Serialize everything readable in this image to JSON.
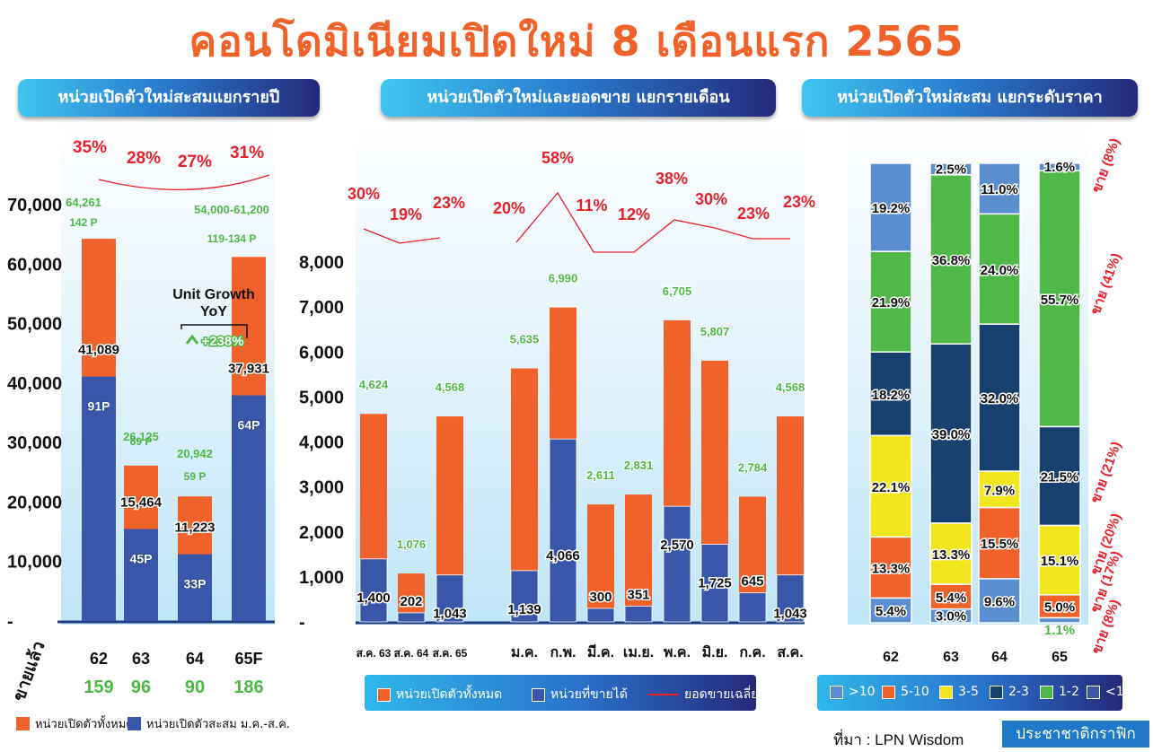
{
  "title": "คอนโดมิเนียมเปิดใหม่ 8 เดือนแรก 2565",
  "panels": {
    "left": "หน่วยเปิดตัวใหม่สะสมแยกรายปี",
    "middle": "หน่วยเปิดตัวใหม่และยอดขาย แยกรายเดือน",
    "right": "หน่วยเปิดตัวใหม่สะสม แยกระดับราคา"
  },
  "colors": {
    "orange": "#f0622a",
    "blue": "#3a56a8",
    "green": "#4fb848",
    "darkblue": "#17406e",
    "yellow": "#f2e61c",
    "lightblue": "#5b8ed0",
    "red": "#e8202a"
  },
  "chart_data": [
    {
      "type": "bar",
      "categories": [
        "62",
        "63",
        "64",
        "65F"
      ],
      "series": [
        {
          "name": "หน่วยเปิดตัวทั้งหมด",
          "values": [
            64261,
            26125,
            20942,
            61200
          ]
        },
        {
          "name": "หน่วยเปิดตัวสะสม ม.ค.-ส.ค.",
          "values": [
            41089,
            15464,
            11223,
            37931
          ]
        }
      ],
      "top_labels": [
        "64,261",
        "26,125",
        "20,942",
        "54,000-61,200"
      ],
      "project_labels": [
        "142 P",
        "69 P",
        "59 P",
        "119-134 P"
      ],
      "inner_values": [
        "41,089",
        "15,464",
        "11,223",
        "37,931"
      ],
      "inner_projects": [
        "91P",
        "45P",
        "33P",
        "64P"
      ],
      "sold_pct": [
        "35%",
        "28%",
        "27%",
        "31%"
      ],
      "sold_pct_values": [
        35,
        28,
        27,
        31
      ],
      "sold_row_label": "ขายแล้ว",
      "sold_row_values": [
        "159",
        "96",
        "90",
        "186"
      ],
      "yticks": [
        "-",
        "10,000",
        "20,000",
        "30,000",
        "40,000",
        "50,000",
        "60,000",
        "70,000"
      ],
      "ylim": [
        0,
        70000
      ],
      "annotation": {
        "line1": "Unit Growth",
        "line2": "YoY",
        "value": "+238%"
      },
      "legend": [
        "หน่วยเปิดตัวทั้งหมด",
        "หน่วยเปิดตัวสะสม ม.ค.-ส.ค."
      ]
    },
    {
      "type": "bar",
      "categories": [
        "ส.ค. 63",
        "ส.ค. 64",
        "ส.ค. 65",
        "ม.ค.",
        "ก.พ.",
        "มี.ค.",
        "เม.ย.",
        "พ.ค.",
        "มิ.ย.",
        "ก.ค.",
        "ส.ค."
      ],
      "series": [
        {
          "name": "หน่วยเปิดตัวทั้งหมด",
          "values": [
            4624,
            1076,
            4568,
            5635,
            6990,
            2611,
            2831,
            6705,
            5807,
            2784,
            4568
          ]
        },
        {
          "name": "หน่วยที่ขายได้",
          "values": [
            1400,
            202,
            1043,
            1139,
            4066,
            300,
            351,
            2570,
            1725,
            645,
            1043
          ]
        },
        {
          "name": "ยอดขายเฉลี่ย",
          "values": [
            30,
            19,
            23,
            20,
            58,
            11,
            12,
            38,
            30,
            23,
            23
          ]
        }
      ],
      "total_labels": [
        "4,624",
        "1,076",
        "4,568",
        "5,635",
        "6,990",
        "2,611",
        "2,831",
        "6,705",
        "5,807",
        "2,784",
        "4,568"
      ],
      "sold_labels": [
        "1,400",
        "202",
        "1,043",
        "1,139",
        "4,066",
        "300",
        "351",
        "2,570",
        "1,725",
        "645",
        "1,043"
      ],
      "pct_labels": [
        "30%",
        "19%",
        "23%",
        "20%",
        "58%",
        "11%",
        "12%",
        "38%",
        "30%",
        "23%",
        "23%"
      ],
      "yticks": [
        "-",
        "1,000",
        "2,000",
        "3,000",
        "4,000",
        "5,000",
        "6,000",
        "7,000",
        "8,000"
      ],
      "ylim": [
        0,
        8000
      ],
      "legend": [
        "หน่วยเปิดตัวทั้งหมด",
        "หน่วยที่ขายได้",
        "ยอดขายเฉลี่ย"
      ]
    },
    {
      "type": "bar",
      "stacked": "percent",
      "categories": [
        "62",
        "63",
        "64",
        "65"
      ],
      "segments": [
        "<1",
        "1-2",
        "2-3",
        "3-5",
        "5-10",
        ">10"
      ],
      "series": [
        {
          "name": ">10",
          "values": [
            5.4,
            3.0,
            9.6,
            1.1
          ]
        },
        {
          "name": "5-10",
          "values": [
            13.3,
            5.4,
            15.5,
            5.0
          ]
        },
        {
          "name": "3-5",
          "values": [
            22.1,
            13.3,
            7.9,
            15.1
          ]
        },
        {
          "name": "2-3",
          "values": [
            18.2,
            39.0,
            32.0,
            21.5
          ]
        },
        {
          "name": "1-2",
          "values": [
            21.9,
            36.8,
            24.0,
            55.7
          ]
        },
        {
          "name": "<1",
          "values": [
            19.2,
            2.5,
            11.0,
            1.6
          ]
        }
      ],
      "side_labels": [
        "ขาย (8%)",
        "ขาย (41%)",
        "ขาย (21%)",
        "ขาย (20%)",
        "ขาย (17%)",
        "ขาย (8%)"
      ],
      "legend": [
        ">10",
        "5-10",
        "3-5",
        "2-3",
        "1-2",
        "<1"
      ]
    }
  ],
  "source": "ที่มา : LPN Wisdom",
  "brand": "ประชาชาติกราฟิก"
}
